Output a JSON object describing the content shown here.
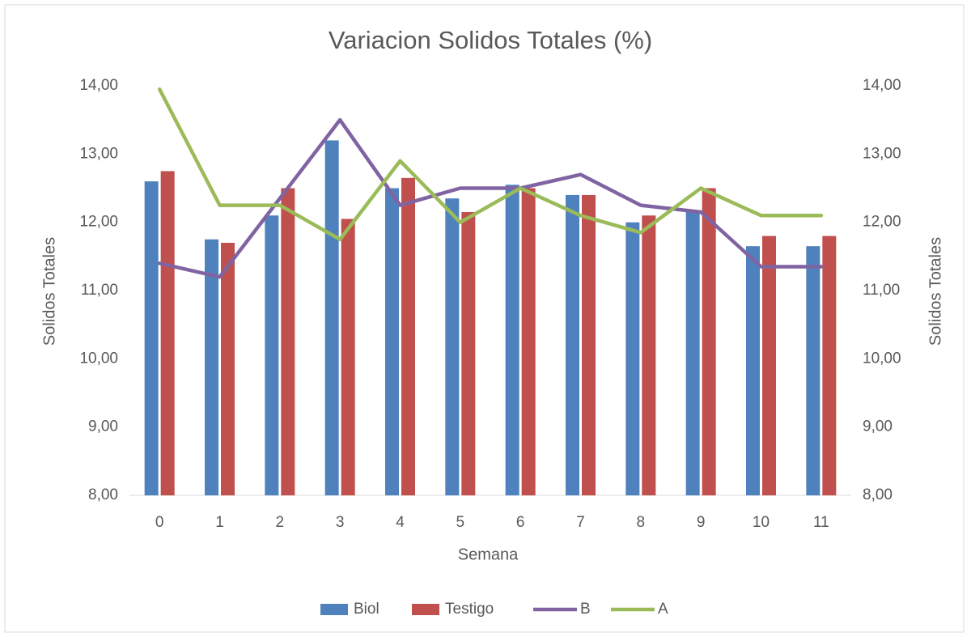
{
  "chart_data": {
    "type": "bar",
    "title": "Variacion Solidos Totales (%)",
    "x_label": "Semana",
    "y_label": "Solidos Totales",
    "y2_label": "Solidos Totales",
    "categories": [
      "0",
      "1",
      "2",
      "3",
      "4",
      "5",
      "6",
      "7",
      "8",
      "9",
      "10",
      "11"
    ],
    "series": [
      {
        "name": "Biol",
        "type": "bar",
        "color": "#4f81bd",
        "values": [
          12.6,
          11.75,
          12.1,
          13.2,
          12.5,
          12.35,
          12.55,
          12.4,
          12.0,
          12.15,
          11.65,
          11.65
        ]
      },
      {
        "name": "Testigo",
        "type": "bar",
        "color": "#c0504d",
        "values": [
          12.75,
          11.7,
          12.5,
          12.05,
          12.65,
          12.15,
          12.5,
          12.4,
          12.1,
          12.5,
          11.8,
          11.8
        ]
      },
      {
        "name": "B",
        "type": "line",
        "axis": "y2",
        "color": "#8064a2",
        "values": [
          11.4,
          11.2,
          12.35,
          13.5,
          12.25,
          12.5,
          12.5,
          12.7,
          12.25,
          12.15,
          11.35,
          11.35
        ]
      },
      {
        "name": "A",
        "type": "line",
        "axis": "y2",
        "color": "#9bbb59",
        "values": [
          13.95,
          12.25,
          12.25,
          11.75,
          12.9,
          12.0,
          12.5,
          12.1,
          11.85,
          12.5,
          12.1,
          12.1
        ]
      }
    ],
    "ylim": [
      8,
      14
    ],
    "yticks": [
      {
        "value": 8,
        "label": "8,00"
      },
      {
        "value": 9,
        "label": "9,00"
      },
      {
        "value": 10,
        "label": "10,00"
      },
      {
        "value": 11,
        "label": "11,00"
      },
      {
        "value": 12,
        "label": "12,00"
      },
      {
        "value": 13,
        "label": "13,00"
      },
      {
        "value": 14,
        "label": "14,00"
      }
    ],
    "y2lim": [
      8,
      14
    ],
    "y2ticks": [
      {
        "value": 8,
        "label": "8,00"
      },
      {
        "value": 9,
        "label": "9,00"
      },
      {
        "value": 10,
        "label": "10,00"
      },
      {
        "value": 11,
        "label": "11,00"
      },
      {
        "value": 12,
        "label": "12,00"
      },
      {
        "value": 13,
        "label": "13,00"
      },
      {
        "value": 14,
        "label": "14,00"
      }
    ],
    "grid": false,
    "legend": "bottom"
  }
}
